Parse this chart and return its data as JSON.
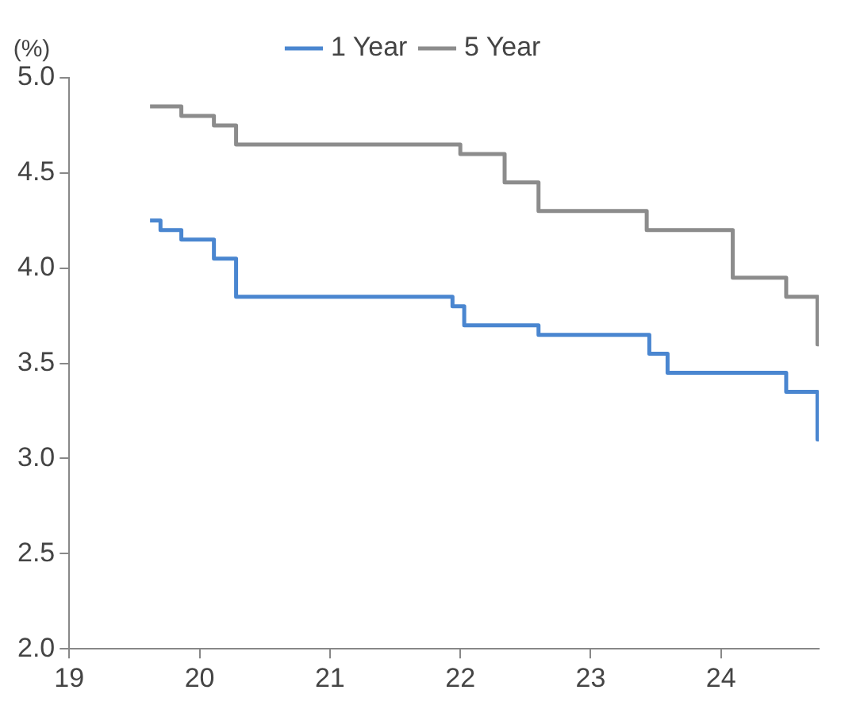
{
  "chart_data": {
    "type": "step",
    "ylabel": "(%)",
    "xlim": [
      19,
      24.75
    ],
    "xticks": [
      19,
      20,
      21,
      22,
      23,
      24
    ],
    "ylim": [
      2,
      5
    ],
    "yticks": [
      {
        "value": 2,
        "label": "2.0"
      },
      {
        "value": 2.5,
        "label": "2.5"
      },
      {
        "value": 3,
        "label": "3.0"
      },
      {
        "value": 3.5,
        "label": "3.5"
      },
      {
        "value": 4,
        "label": "4.0"
      },
      {
        "value": 4.5,
        "label": "4.5"
      },
      {
        "value": 5,
        "label": "5.0"
      }
    ],
    "grid": false,
    "legend": "top",
    "marker": "none",
    "line_style": "solid",
    "series": [
      {
        "name": "1 Year",
        "color": "#4a86d0",
        "x": [
          19.62,
          19.7,
          19.86,
          20.11,
          20.28,
          21.94,
          22.03,
          22.6,
          23.45,
          23.59,
          24.5,
          24.74,
          24.75
        ],
        "values": [
          4.25,
          4.2,
          4.15,
          4.05,
          3.85,
          3.8,
          3.7,
          3.65,
          3.55,
          3.45,
          3.35,
          3.1,
          3.1
        ]
      },
      {
        "name": "5 Year",
        "color": "#8c8c8c",
        "x": [
          19.62,
          19.86,
          20.11,
          20.28,
          22.0,
          22.34,
          22.6,
          23.43,
          24.09,
          24.5,
          24.74,
          24.75
        ],
        "values": [
          4.85,
          4.8,
          4.75,
          4.65,
          4.6,
          4.45,
          4.3,
          4.2,
          3.95,
          3.85,
          3.6,
          3.6
        ]
      }
    ]
  }
}
